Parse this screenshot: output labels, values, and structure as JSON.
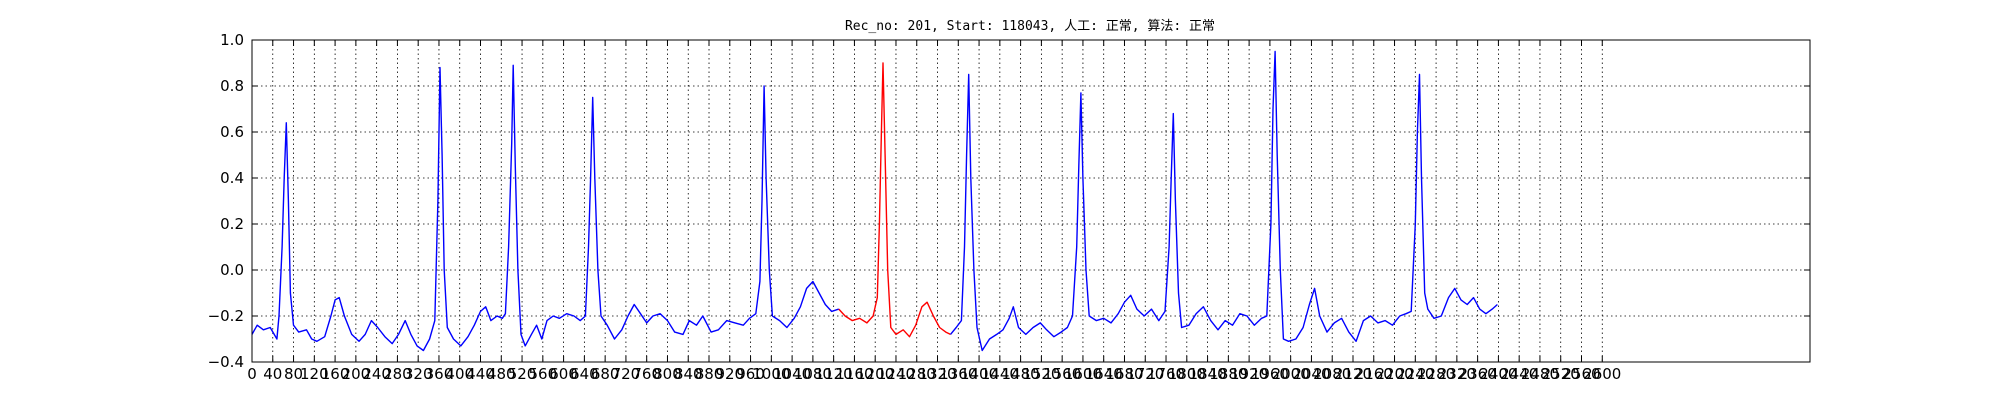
{
  "chart_data": {
    "type": "line",
    "title": "Rec_no: 201, Start: 118043, 人工: 正常, 算法: 正常",
    "xlabel": "",
    "ylabel": "",
    "xlim": [
      0,
      3000
    ],
    "ylim": [
      -0.4,
      1.0
    ],
    "grid": true,
    "yticks": [
      -0.4,
      -0.2,
      0.0,
      0.2,
      0.4,
      0.6,
      0.8,
      1.0
    ],
    "ytick_labels": [
      "−0.4",
      "−0.2",
      "0.0",
      "0.2",
      "0.4",
      "0.6",
      "0.8",
      "1.0"
    ],
    "xticks": [
      0,
      40,
      80,
      120,
      160,
      200,
      240,
      280,
      320,
      360,
      400,
      440,
      480,
      520,
      560,
      600,
      640,
      680,
      720,
      760,
      800,
      840,
      880,
      920,
      960,
      1000,
      1040,
      1080,
      1120,
      1160,
      1200,
      1240,
      1280,
      1320,
      1360,
      1400,
      1440,
      1480,
      1520,
      1560,
      1600,
      1640,
      1680,
      1720,
      1760,
      1800,
      1840,
      1880,
      1920,
      1960,
      2000,
      2040,
      2080,
      2120,
      2160,
      2200,
      2240,
      2280,
      2320,
      2360,
      2400,
      2440,
      2480,
      2520,
      2560,
      2600
    ],
    "series": [
      {
        "color": "#0000ff",
        "values": [
          [
            0,
            -0.28
          ],
          [
            10,
            -0.24
          ],
          [
            22,
            -0.26
          ],
          [
            35,
            -0.25
          ],
          [
            48,
            -0.3
          ],
          [
            52,
            -0.2
          ],
          [
            58,
            0.1
          ],
          [
            62,
            0.4
          ],
          [
            66,
            0.64
          ],
          [
            70,
            0.3
          ],
          [
            74,
            -0.1
          ],
          [
            80,
            -0.24
          ],
          [
            90,
            -0.27
          ],
          [
            105,
            -0.26
          ],
          [
            115,
            -0.3
          ],
          [
            125,
            -0.31
          ],
          [
            140,
            -0.29
          ],
          [
            152,
            -0.2
          ],
          [
            160,
            -0.13
          ],
          [
            168,
            -0.12
          ],
          [
            178,
            -0.2
          ],
          [
            192,
            -0.28
          ],
          [
            206,
            -0.31
          ],
          [
            218,
            -0.28
          ],
          [
            230,
            -0.22
          ],
          [
            242,
            -0.25
          ],
          [
            256,
            -0.29
          ],
          [
            270,
            -0.32
          ],
          [
            282,
            -0.28
          ],
          [
            295,
            -0.22
          ],
          [
            306,
            -0.28
          ],
          [
            318,
            -0.33
          ],
          [
            330,
            -0.35
          ],
          [
            342,
            -0.3
          ],
          [
            352,
            -0.22
          ],
          [
            358,
            0.3
          ],
          [
            362,
            0.88
          ],
          [
            366,
            0.5
          ],
          [
            370,
            0.0
          ],
          [
            376,
            -0.25
          ],
          [
            388,
            -0.3
          ],
          [
            402,
            -0.33
          ],
          [
            416,
            -0.29
          ],
          [
            428,
            -0.24
          ],
          [
            440,
            -0.18
          ],
          [
            450,
            -0.16
          ],
          [
            460,
            -0.22
          ],
          [
            472,
            -0.2
          ],
          [
            482,
            -0.21
          ],
          [
            488,
            -0.19
          ],
          [
            494,
            0.1
          ],
          [
            500,
            0.55
          ],
          [
            503,
            0.89
          ],
          [
            507,
            0.45
          ],
          [
            512,
            0.0
          ],
          [
            518,
            -0.28
          ],
          [
            526,
            -0.33
          ],
          [
            538,
            -0.28
          ],
          [
            548,
            -0.24
          ],
          [
            558,
            -0.3
          ],
          [
            568,
            -0.22
          ],
          [
            580,
            -0.2
          ],
          [
            592,
            -0.21
          ],
          [
            606,
            -0.19
          ],
          [
            620,
            -0.2
          ],
          [
            632,
            -0.22
          ],
          [
            642,
            -0.2
          ],
          [
            648,
            0.1
          ],
          [
            652,
            0.4
          ],
          [
            656,
            0.75
          ],
          [
            660,
            0.4
          ],
          [
            666,
            0.0
          ],
          [
            672,
            -0.2
          ],
          [
            684,
            -0.24
          ],
          [
            698,
            -0.3
          ],
          [
            712,
            -0.26
          ],
          [
            724,
            -0.2
          ],
          [
            736,
            -0.15
          ],
          [
            748,
            -0.19
          ],
          [
            760,
            -0.23
          ],
          [
            772,
            -0.2
          ],
          [
            786,
            -0.19
          ],
          [
            800,
            -0.22
          ],
          [
            814,
            -0.27
          ],
          [
            830,
            -0.28
          ],
          [
            842,
            -0.22
          ],
          [
            856,
            -0.24
          ],
          [
            868,
            -0.2
          ],
          [
            884,
            -0.27
          ],
          [
            898,
            -0.26
          ],
          [
            914,
            -0.22
          ],
          [
            930,
            -0.23
          ],
          [
            946,
            -0.24
          ],
          [
            958,
            -0.21
          ],
          [
            970,
            -0.19
          ],
          [
            978,
            -0.05
          ],
          [
            982,
            0.3
          ],
          [
            986,
            0.8
          ],
          [
            990,
            0.4
          ],
          [
            996,
            0.0
          ],
          [
            1002,
            -0.2
          ],
          [
            1016,
            -0.22
          ],
          [
            1030,
            -0.25
          ],
          [
            1044,
            -0.21
          ],
          [
            1056,
            -0.16
          ],
          [
            1068,
            -0.08
          ],
          [
            1080,
            -0.05
          ],
          [
            1092,
            -0.1
          ],
          [
            1104,
            -0.15
          ],
          [
            1116,
            -0.18
          ],
          [
            1130,
            -0.17
          ]
        ]
      },
      {
        "color": "#ff0000",
        "values": [
          [
            1130,
            -0.17
          ],
          [
            1142,
            -0.2
          ],
          [
            1156,
            -0.22
          ],
          [
            1170,
            -0.21
          ],
          [
            1184,
            -0.23
          ],
          [
            1196,
            -0.2
          ],
          [
            1204,
            -0.12
          ],
          [
            1208,
            0.2
          ],
          [
            1212,
            0.6
          ],
          [
            1215,
            0.9
          ],
          [
            1219,
            0.5
          ],
          [
            1224,
            0.0
          ],
          [
            1230,
            -0.25
          ],
          [
            1240,
            -0.28
          ],
          [
            1254,
            -0.26
          ],
          [
            1266,
            -0.29
          ],
          [
            1278,
            -0.24
          ],
          [
            1290,
            -0.16
          ],
          [
            1300,
            -0.14
          ],
          [
            1312,
            -0.2
          ],
          [
            1324,
            -0.25
          ],
          [
            1336,
            -0.27
          ],
          [
            1345,
            -0.28
          ]
        ]
      },
      {
        "color": "#0000ff",
        "values": [
          [
            1345,
            -0.28
          ],
          [
            1356,
            -0.25
          ],
          [
            1366,
            -0.22
          ],
          [
            1372,
            0.1
          ],
          [
            1376,
            0.5
          ],
          [
            1380,
            0.85
          ],
          [
            1384,
            0.4
          ],
          [
            1390,
            0.0
          ],
          [
            1396,
            -0.25
          ],
          [
            1406,
            -0.35
          ],
          [
            1420,
            -0.3
          ],
          [
            1434,
            -0.28
          ],
          [
            1446,
            -0.26
          ],
          [
            1458,
            -0.21
          ],
          [
            1466,
            -0.16
          ],
          [
            1476,
            -0.25
          ],
          [
            1490,
            -0.28
          ],
          [
            1504,
            -0.25
          ],
          [
            1518,
            -0.23
          ],
          [
            1530,
            -0.26
          ],
          [
            1544,
            -0.29
          ],
          [
            1558,
            -0.27
          ],
          [
            1570,
            -0.25
          ],
          [
            1580,
            -0.2
          ],
          [
            1588,
            0.1
          ],
          [
            1592,
            0.45
          ],
          [
            1596,
            0.77
          ],
          [
            1600,
            0.4
          ],
          [
            1606,
            0.0
          ],
          [
            1612,
            -0.2
          ],
          [
            1626,
            -0.22
          ],
          [
            1640,
            -0.21
          ],
          [
            1654,
            -0.23
          ],
          [
            1668,
            -0.19
          ],
          [
            1680,
            -0.14
          ],
          [
            1692,
            -0.11
          ],
          [
            1704,
            -0.17
          ],
          [
            1718,
            -0.2
          ],
          [
            1732,
            -0.17
          ],
          [
            1746,
            -0.22
          ],
          [
            1758,
            -0.18
          ],
          [
            1766,
            0.1
          ],
          [
            1770,
            0.4
          ],
          [
            1774,
            0.68
          ],
          [
            1778,
            0.3
          ],
          [
            1784,
            -0.1
          ],
          [
            1790,
            -0.25
          ],
          [
            1804,
            -0.24
          ],
          [
            1818,
            -0.19
          ],
          [
            1832,
            -0.16
          ],
          [
            1846,
            -0.22
          ],
          [
            1860,
            -0.26
          ],
          [
            1874,
            -0.22
          ],
          [
            1888,
            -0.24
          ],
          [
            1902,
            -0.19
          ],
          [
            1916,
            -0.2
          ],
          [
            1930,
            -0.24
          ],
          [
            1944,
            -0.21
          ],
          [
            1954,
            -0.2
          ],
          [
            1962,
            0.2
          ],
          [
            1966,
            0.7
          ],
          [
            1970,
            0.95
          ],
          [
            1974,
            0.5
          ],
          [
            1980,
            0.0
          ],
          [
            1986,
            -0.3
          ],
          [
            1996,
            -0.31
          ],
          [
            2010,
            -0.3
          ],
          [
            2024,
            -0.25
          ],
          [
            2036,
            -0.15
          ],
          [
            2046,
            -0.08
          ],
          [
            2056,
            -0.2
          ],
          [
            2070,
            -0.27
          ],
          [
            2084,
            -0.23
          ],
          [
            2098,
            -0.21
          ],
          [
            2112,
            -0.27
          ],
          [
            2126,
            -0.31
          ],
          [
            2140,
            -0.22
          ],
          [
            2154,
            -0.2
          ],
          [
            2168,
            -0.23
          ],
          [
            2182,
            -0.22
          ],
          [
            2196,
            -0.24
          ],
          [
            2210,
            -0.2
          ],
          [
            2222,
            -0.19
          ],
          [
            2232,
            -0.18
          ],
          [
            2240,
            0.2
          ],
          [
            2244,
            0.6
          ],
          [
            2248,
            0.85
          ],
          [
            2252,
            0.4
          ],
          [
            2258,
            -0.1
          ],
          [
            2264,
            -0.17
          ],
          [
            2276,
            -0.21
          ],
          [
            2290,
            -0.2
          ],
          [
            2304,
            -0.12
          ],
          [
            2316,
            -0.08
          ],
          [
            2328,
            -0.13
          ],
          [
            2340,
            -0.15
          ],
          [
            2352,
            -0.12
          ],
          [
            2364,
            -0.17
          ],
          [
            2376,
            -0.19
          ],
          [
            2388,
            -0.17
          ],
          [
            2398,
            -0.15
          ]
        ]
      }
    ]
  }
}
